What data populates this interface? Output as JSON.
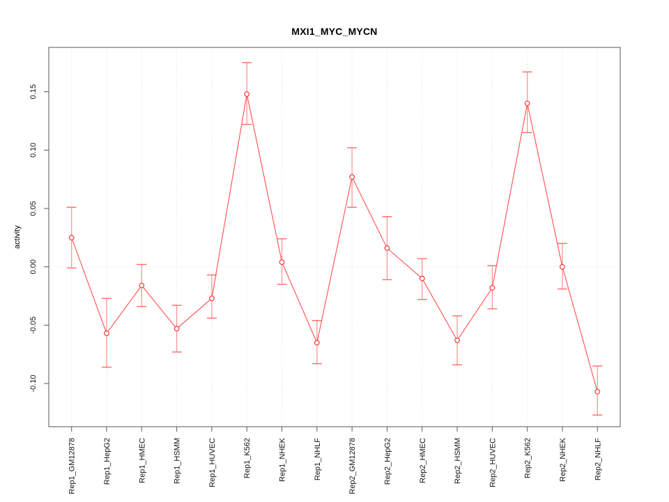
{
  "chart_data": {
    "type": "line",
    "title": "MXI1_MYC_MYCN",
    "ylabel": "activity",
    "categories": [
      "Rep1_GM12878",
      "Rep1_HepG2",
      "Rep1_HMEC",
      "Rep1_HSMM",
      "Rep1_HUVEC",
      "Rep1_K562",
      "Rep1_NHEK",
      "Rep1_NHLF",
      "Rep2_GM12878",
      "Rep2_HepG2",
      "Rep2_HMEC",
      "Rep2_HSMM",
      "Rep2_HUVEC",
      "Rep2_K562",
      "Rep2_NHEK",
      "Rep2_NHLF"
    ],
    "series": [
      {
        "name": "activity",
        "values": [
          0.025,
          -0.057,
          -0.016,
          -0.053,
          -0.027,
          0.148,
          0.004,
          -0.065,
          0.077,
          0.016,
          -0.01,
          -0.063,
          -0.018,
          0.14,
          0.0,
          -0.107
        ],
        "upper": [
          0.051,
          -0.027,
          0.002,
          -0.033,
          -0.007,
          0.175,
          0.024,
          -0.046,
          0.102,
          0.043,
          0.007,
          -0.042,
          0.001,
          0.167,
          0.02,
          -0.085
        ],
        "lower": [
          -0.001,
          -0.086,
          -0.034,
          -0.073,
          -0.044,
          0.122,
          -0.015,
          -0.083,
          0.051,
          -0.011,
          -0.028,
          -0.084,
          -0.036,
          0.115,
          -0.019,
          -0.127
        ]
      }
    ],
    "ylim": [
      -0.137,
      0.188
    ],
    "ytick_values": [
      -0.1,
      -0.05,
      0.0,
      0.05,
      0.1,
      0.15
    ],
    "ytick_labels": [
      "-0.10",
      "-0.05",
      "0.00",
      "0.05",
      "0.10",
      "0.15"
    ],
    "grid": true,
    "zero_line": true,
    "legend": "none",
    "marker": "open-circle",
    "colors": {
      "line": "#ff4a4a",
      "error_bar": "#ff6a6a",
      "marker_stroke": "#f03838",
      "grid": "#d9d9d9",
      "axis": "#555555",
      "text": "#111111"
    }
  }
}
